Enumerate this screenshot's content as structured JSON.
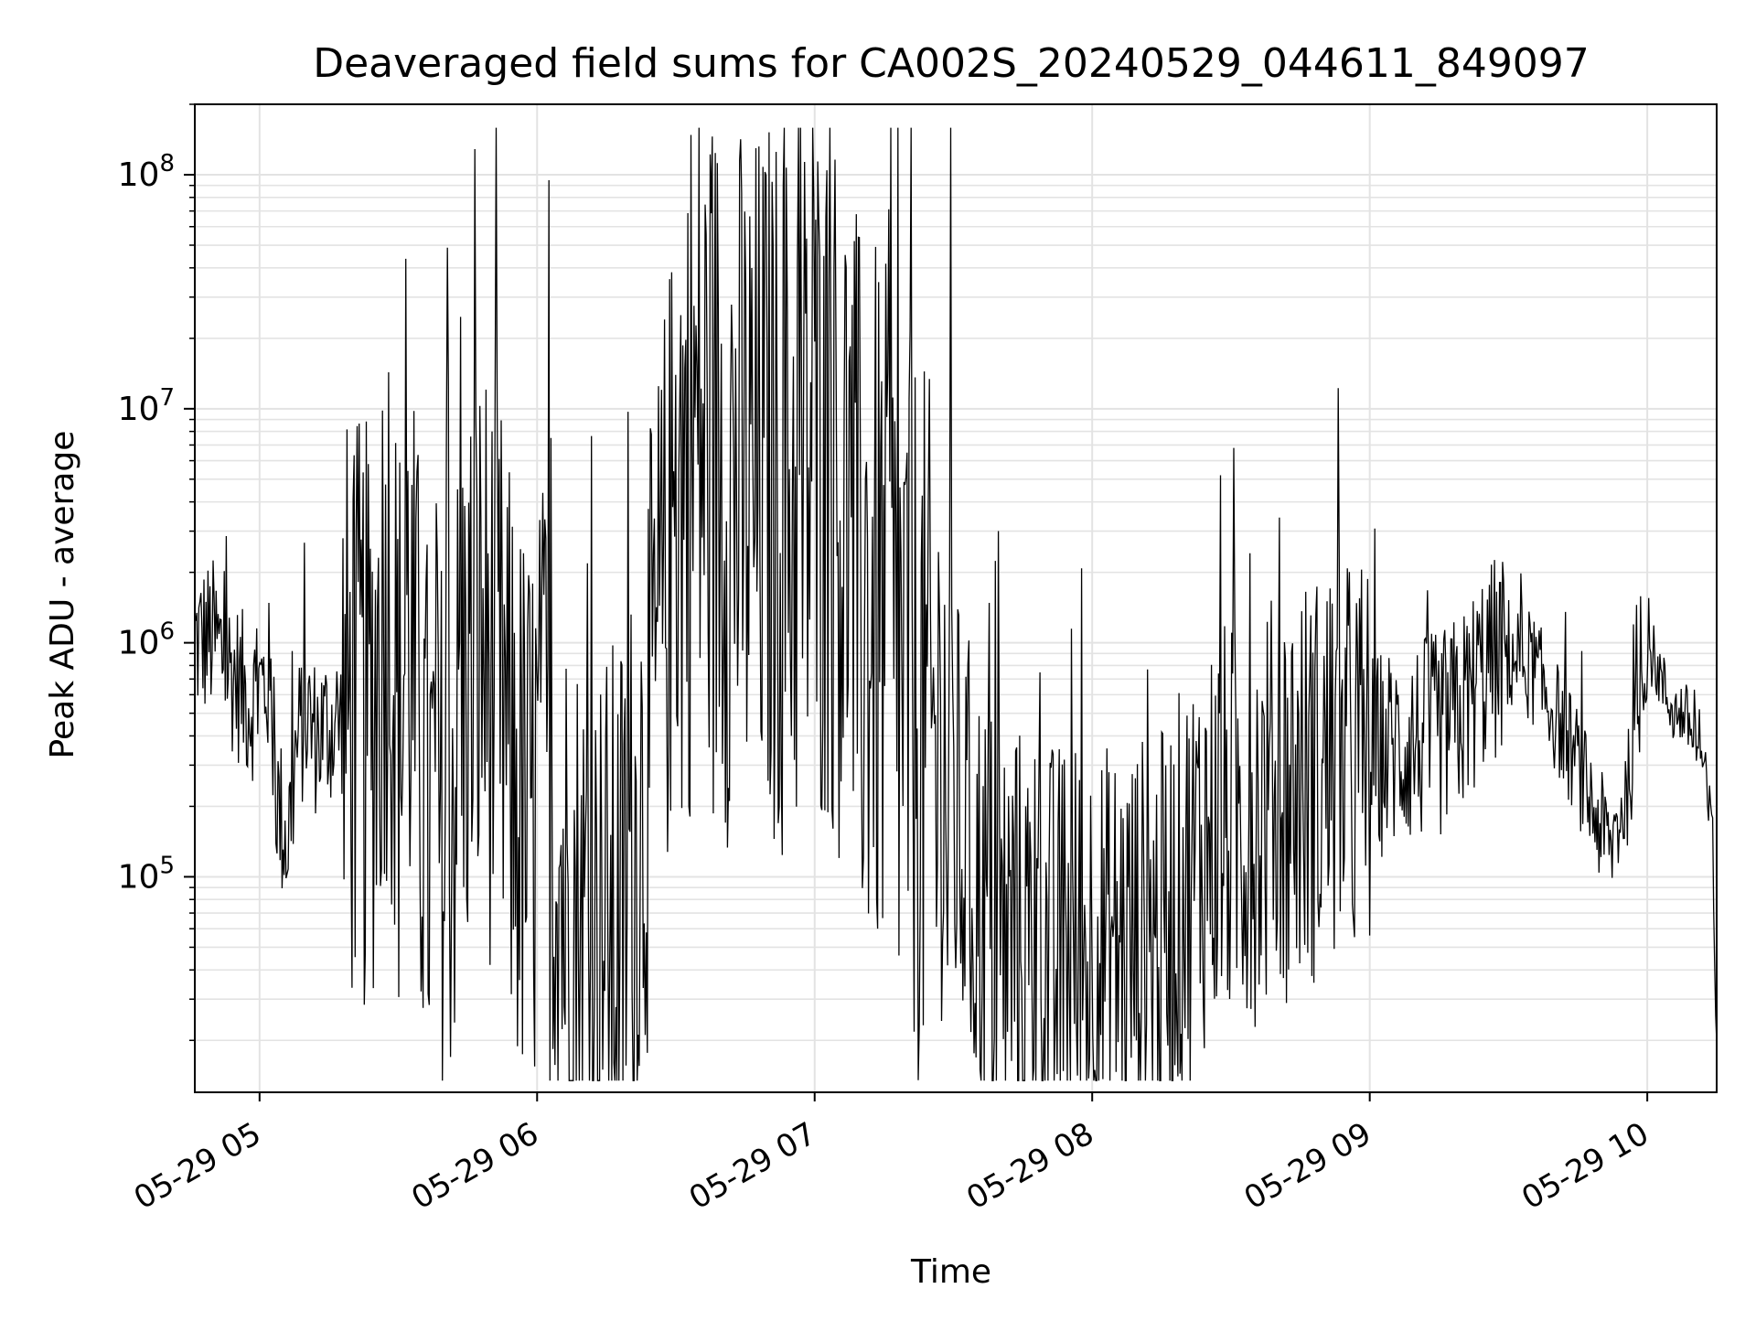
{
  "chart_data": {
    "type": "line",
    "title": "Deaveraged field sums for CA002S_20240529_044611_849097",
    "xlabel": "Time",
    "ylabel": "Peak ADU - average",
    "xscale": "time",
    "yscale": "log",
    "xlim": [
      "2024-05-29 04:46",
      "2024-05-29 10:15"
    ],
    "ylim": [
      12000,
      200000000
    ],
    "x_ticks": [
      "05-29 05",
      "05-29 06",
      "05-29 07",
      "05-29 08",
      "05-29 09",
      "05-29 10"
    ],
    "y_ticks": [
      {
        "base": "10",
        "exp": "5"
      },
      {
        "base": "10",
        "exp": "6"
      },
      {
        "base": "10",
        "exp": "7"
      },
      {
        "base": "10",
        "exp": "8"
      }
    ],
    "grid": true,
    "line_color": "#000000",
    "series": [
      {
        "x": [
          "04:46",
          "04:50",
          "04:54",
          "04:58",
          "05:02",
          "05:04",
          "05:06",
          "05:08",
          "05:10",
          "05:12",
          "05:16",
          "05:20",
          "05:24",
          "05:28",
          "05:30",
          "05:32",
          "05:36",
          "05:40",
          "05:44",
          "05:48",
          "05:52",
          "05:54",
          "05:58",
          "06:02",
          "06:06",
          "06:10",
          "06:14",
          "06:18",
          "06:22",
          "06:26",
          "06:30",
          "06:34",
          "06:38",
          "06:42",
          "06:46",
          "06:50",
          "06:54",
          "06:58",
          "07:02",
          "07:06",
          "07:10",
          "07:14",
          "07:18",
          "07:22",
          "07:26",
          "07:30",
          "07:34",
          "07:38",
          "07:42",
          "07:46",
          "07:50",
          "07:54",
          "07:58",
          "08:05",
          "08:15",
          "08:25",
          "08:35",
          "08:45",
          "08:55",
          "09:05",
          "09:15",
          "09:20",
          "09:25",
          "09:30",
          "09:35",
          "09:40",
          "09:45",
          "09:48",
          "09:52",
          "09:56",
          "10:00",
          "10:02",
          "10:04",
          "10:06",
          "10:08",
          "10:10",
          "10:12",
          "10:14",
          "10:15"
        ],
        "y": [
          1000000,
          1050000,
          750000,
          550000,
          700000,
          200000,
          140000,
          350000,
          500000,
          400000,
          450000,
          500000,
          450000,
          2200000,
          400000,
          1200000,
          170000,
          140000,
          600000,
          1000000,
          600000,
          300000,
          150000,
          300000,
          80000,
          55000,
          50000,
          60000,
          150000,
          800000,
          4000000,
          8000000,
          6000000,
          5000000,
          4000000,
          5000000,
          4000000,
          5000000,
          6000000,
          4000000,
          1500000,
          1300000,
          700000,
          500000,
          300000,
          200000,
          100000,
          60000,
          50000,
          45000,
          40000,
          40000,
          45000,
          50000,
          55000,
          150000,
          180000,
          250000,
          300000,
          350000,
          400000,
          500000,
          800000,
          900000,
          800000,
          500000,
          300000,
          200000,
          130000,
          250000,
          1000000,
          800000,
          600000,
          500000,
          500000,
          400000,
          300000,
          150000,
          20000
        ]
      }
    ]
  }
}
